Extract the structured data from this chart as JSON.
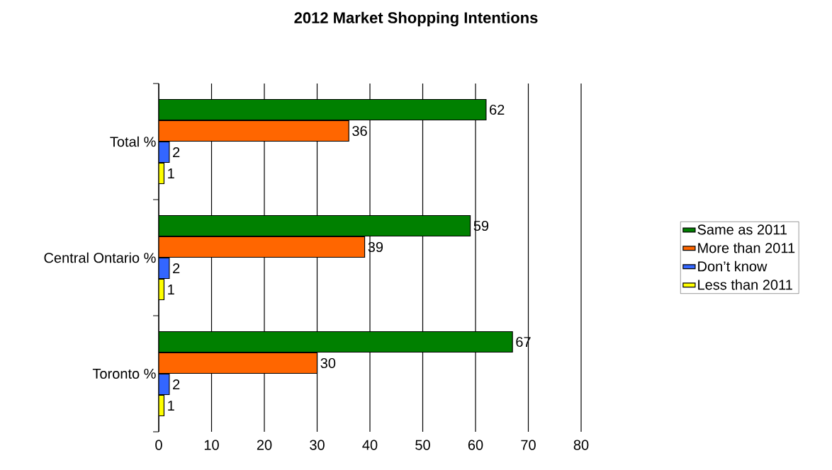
{
  "chart_data": {
    "type": "bar",
    "orientation": "horizontal",
    "title": "2012 Market Shopping Intentions",
    "categories": [
      "Total %",
      "Central Ontario %",
      "Toronto %"
    ],
    "series": [
      {
        "name": "Same as 2011",
        "color": "#008000",
        "values": [
          62,
          59,
          67
        ]
      },
      {
        "name": "More than 2011",
        "color": "#ff6600",
        "values": [
          36,
          39,
          30
        ]
      },
      {
        "name": "Don’t know",
        "color": "#3366ff",
        "values": [
          2,
          2,
          2
        ]
      },
      {
        "name": "Less than 2011",
        "color": "#ffff00",
        "values": [
          1,
          1,
          1
        ]
      }
    ],
    "xlim": [
      0,
      80
    ],
    "xticks": [
      0,
      10,
      20,
      30,
      40,
      50,
      60,
      70,
      80
    ],
    "grid": "x",
    "legend": "right",
    "data_labels": true
  }
}
